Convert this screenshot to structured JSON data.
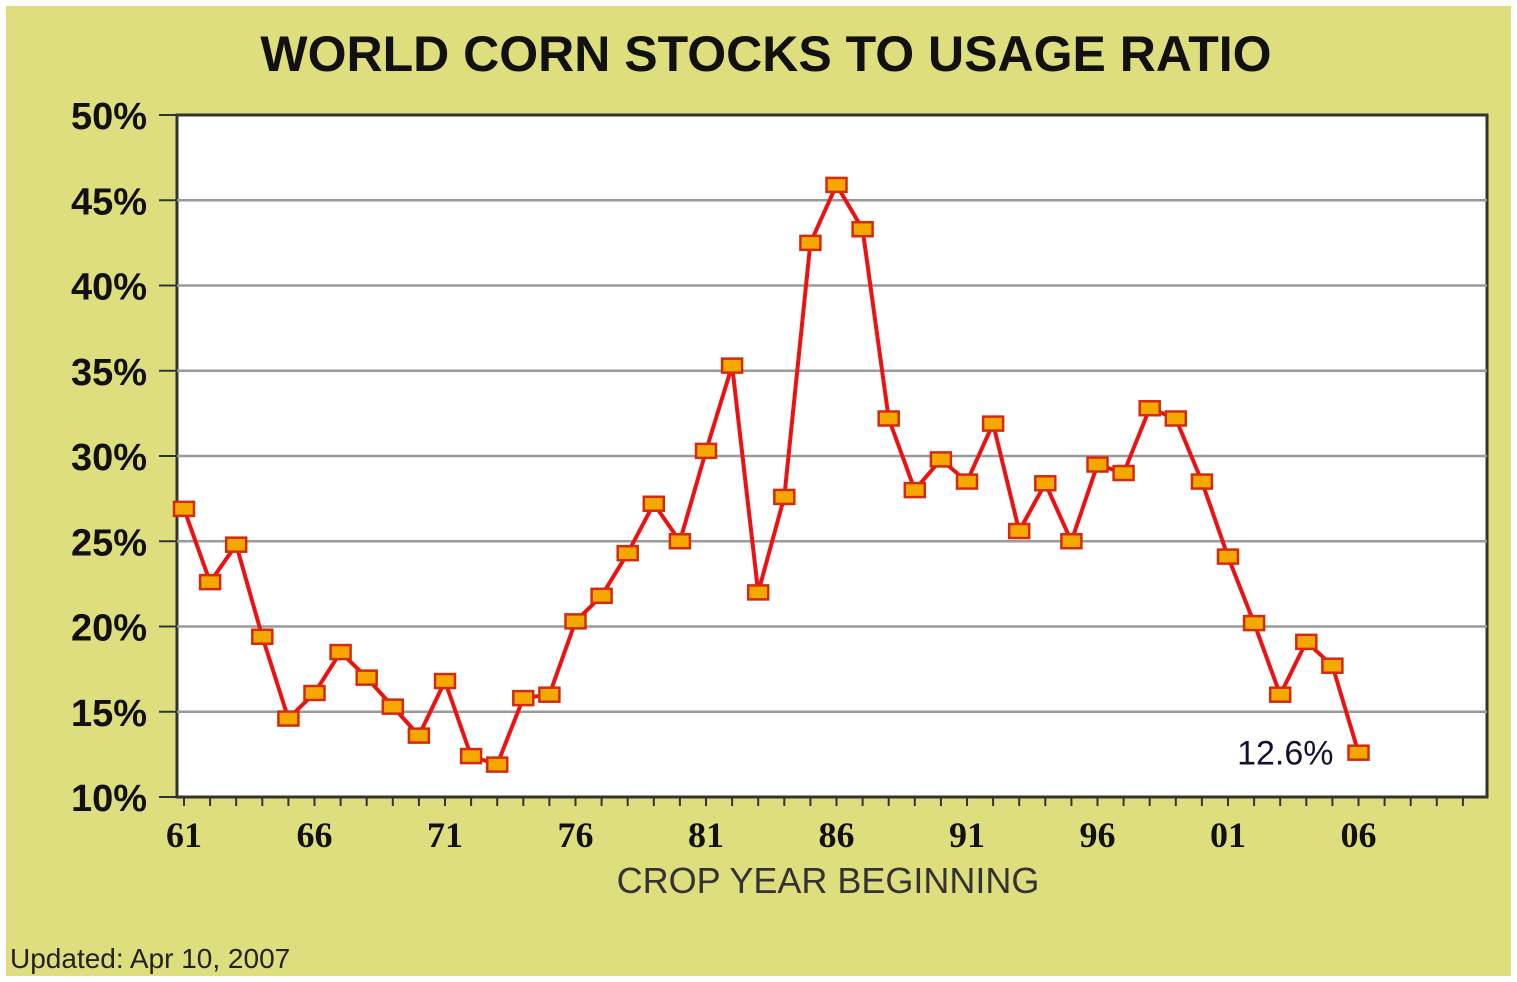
{
  "chart_data": {
    "type": "line",
    "title": "WORLD CORN STOCKS TO USAGE RATIO",
    "xlabel": "CROP YEAR BEGINNING",
    "ylabel": "",
    "ylim": [
      10,
      50
    ],
    "xlim": [
      1961,
      2006
    ],
    "yticks": [
      {
        "value": 10,
        "label": "10%"
      },
      {
        "value": 15,
        "label": "15%"
      },
      {
        "value": 20,
        "label": "20%"
      },
      {
        "value": 25,
        "label": "25%"
      },
      {
        "value": 30,
        "label": "30%"
      },
      {
        "value": 35,
        "label": "35%"
      },
      {
        "value": 40,
        "label": "40%"
      },
      {
        "value": 45,
        "label": "45%"
      },
      {
        "value": 50,
        "label": "50%"
      }
    ],
    "xticks": [
      {
        "value": 1961,
        "label": "61"
      },
      {
        "value": 1966,
        "label": "66"
      },
      {
        "value": 1971,
        "label": "71"
      },
      {
        "value": 1976,
        "label": "76"
      },
      {
        "value": 1981,
        "label": "81"
      },
      {
        "value": 1986,
        "label": "86"
      },
      {
        "value": 1991,
        "label": "91"
      },
      {
        "value": 1996,
        "label": "96"
      },
      {
        "value": 2001,
        "label": "01"
      },
      {
        "value": 2006,
        "label": "06"
      }
    ],
    "grid": true,
    "series": [
      {
        "x": [
          1961,
          1962,
          1963,
          1964,
          1965,
          1966,
          1967,
          1968,
          1969,
          1970,
          1971,
          1972,
          1973,
          1974,
          1975,
          1976,
          1977,
          1978,
          1979,
          1980,
          1981,
          1982,
          1983,
          1984,
          1985,
          1986,
          1987,
          1988,
          1989,
          1990,
          1991,
          1992,
          1993,
          1994,
          1995,
          1996,
          1997,
          1998,
          1999,
          2000,
          2001,
          2002,
          2003,
          2004,
          2005,
          2006
        ],
        "values": [
          26.9,
          22.6,
          24.8,
          19.4,
          14.6,
          16.1,
          18.5,
          17.0,
          15.3,
          13.6,
          16.8,
          12.4,
          11.9,
          15.8,
          16.0,
          20.3,
          21.8,
          24.3,
          27.2,
          25.0,
          30.3,
          35.3,
          22.0,
          27.6,
          42.5,
          45.9,
          43.3,
          32.2,
          28.0,
          29.8,
          28.5,
          31.9,
          25.6,
          28.4,
          25.0,
          29.5,
          29.0,
          32.8,
          32.2,
          28.5,
          24.1,
          20.2,
          16.0,
          19.1,
          17.7,
          12.6
        ],
        "color": "#ee1111",
        "marker_color": "#f5a800"
      }
    ],
    "annotations": [
      {
        "x": 2006,
        "y": 12.6,
        "text": "12.6%"
      }
    ]
  },
  "footer": {
    "updated": "Updated: Apr 10, 2007"
  }
}
